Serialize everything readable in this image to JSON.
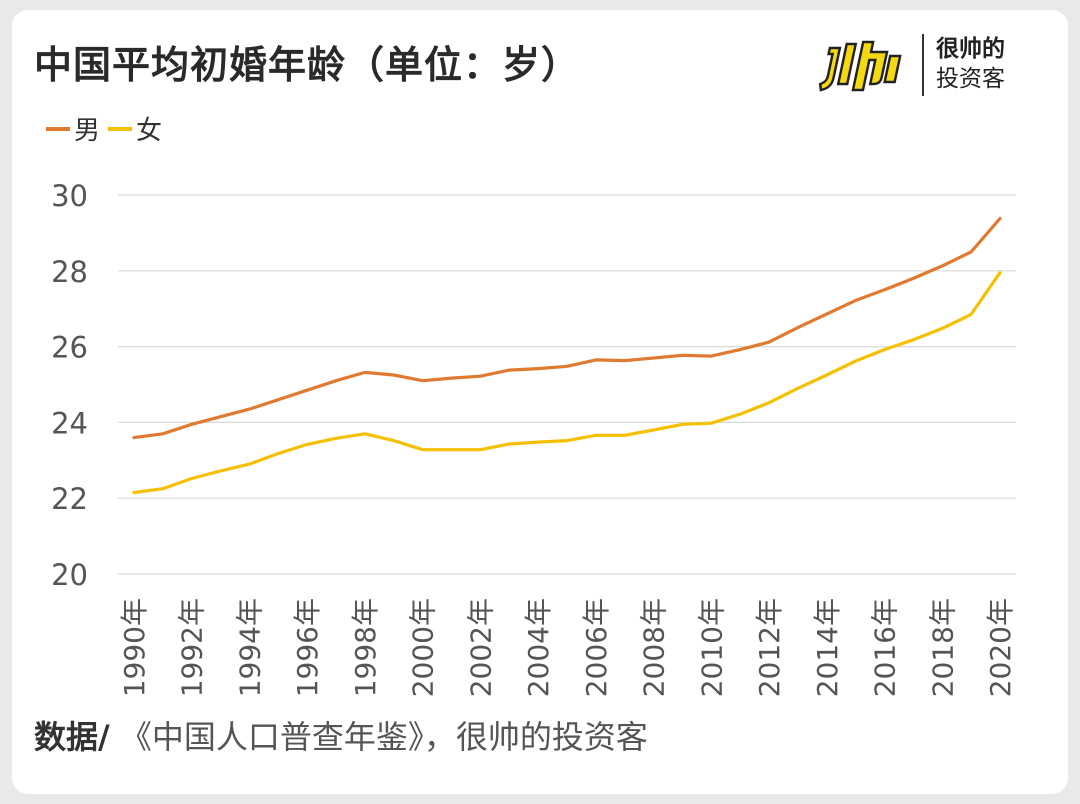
{
  "title": "中国平均初婚年龄（单位：岁）",
  "logo": {
    "line1": "很帅的",
    "line2": "投资客",
    "mark_color": "#f5d90f"
  },
  "footer": {
    "label": "数据/",
    "source": "《中国人口普查年鉴》，很帅的投资客"
  },
  "colors": {
    "male": "#e07a30",
    "female": "#f5c000",
    "grid": "#d9d9d9",
    "tick_label": "#555555"
  },
  "chart_data": {
    "type": "line",
    "title": "中国平均初婚年龄（单位：岁）",
    "xlabel": "",
    "ylabel": "",
    "ylim": [
      20,
      30
    ],
    "yticks": [
      "20",
      "22",
      "24",
      "26",
      "28",
      "30"
    ],
    "grid": true,
    "legend_position": "top-left",
    "x": [
      1990,
      1991,
      1992,
      1993,
      1994,
      1995,
      1996,
      1997,
      1998,
      1999,
      2000,
      2001,
      2002,
      2003,
      2004,
      2005,
      2006,
      2007,
      2008,
      2009,
      2010,
      2011,
      2012,
      2013,
      2014,
      2015,
      2016,
      2017,
      2018,
      2019,
      2020
    ],
    "xtick_labels": [
      "1990年",
      "1992年",
      "1994年",
      "1996年",
      "1998年",
      "2000年",
      "2002年",
      "2004年",
      "2006年",
      "2008年",
      "2010年",
      "2012年",
      "2014年",
      "2016年",
      "2018年",
      "2020年"
    ],
    "series": [
      {
        "name": "男",
        "color": "#e07a30",
        "values": [
          23.6,
          23.7,
          23.95,
          24.15,
          24.35,
          24.6,
          24.85,
          25.1,
          25.32,
          25.25,
          25.1,
          25.17,
          25.22,
          25.38,
          25.42,
          25.48,
          25.65,
          25.63,
          25.7,
          25.77,
          25.75,
          25.92,
          26.12,
          26.5,
          26.86,
          27.22,
          27.5,
          27.8,
          28.13,
          28.5,
          29.38
        ]
      },
      {
        "name": "女",
        "color": "#f5c000",
        "values": [
          22.15,
          22.25,
          22.52,
          22.72,
          22.9,
          23.18,
          23.42,
          23.58,
          23.7,
          23.52,
          23.28,
          23.28,
          23.28,
          23.43,
          23.48,
          23.52,
          23.66,
          23.66,
          23.8,
          23.95,
          23.98,
          24.22,
          24.52,
          24.9,
          25.25,
          25.62,
          25.92,
          26.18,
          26.48,
          26.85,
          27.95
        ]
      }
    ]
  }
}
